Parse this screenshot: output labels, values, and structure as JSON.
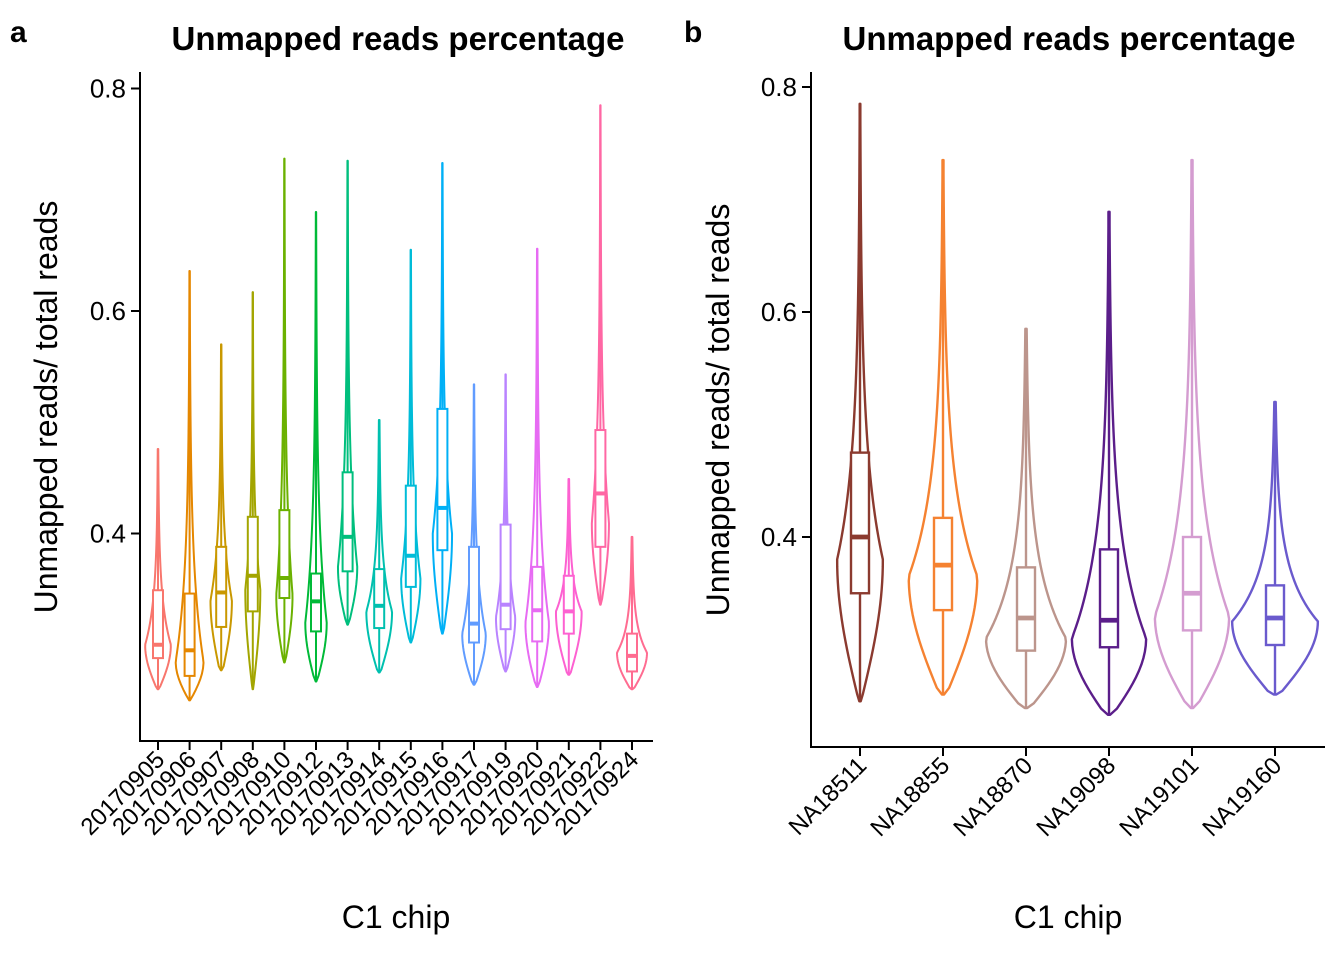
{
  "chart_data": [
    {
      "panel": "a",
      "type": "violin",
      "title": "Unmapped reads percentage",
      "xlabel": "C1 chip",
      "ylabel": "Unmapped reads/ total reads",
      "ylim": [
        0.23,
        0.815
      ],
      "yticks": [
        0.4,
        0.6,
        0.8
      ],
      "ytick_labels": [
        "0.4",
        "0.6",
        "0.8"
      ],
      "grid": false,
      "legend": "none",
      "categories": [
        {
          "name": "20170905",
          "color": "#F8766D",
          "min": 0.26,
          "max": 0.476,
          "q1": 0.288,
          "median": 0.3,
          "q3": 0.349,
          "mode": 0.3,
          "maxw": 0.6,
          "w_low": 0.08,
          "w_high": 0.04
        },
        {
          "name": "20170906",
          "color": "#E58700",
          "min": 0.25,
          "max": 0.636,
          "q1": 0.272,
          "median": 0.295,
          "q3": 0.346,
          "mode": 0.285,
          "maxw": 0.65,
          "w_low": 0.05,
          "w_high": 0.02
        },
        {
          "name": "20170907",
          "color": "#C99800",
          "min": 0.277,
          "max": 0.57,
          "q1": 0.316,
          "median": 0.347,
          "q3": 0.388,
          "mode": 0.34,
          "maxw": 0.5,
          "w_low": 0.15,
          "w_high": 0.03
        },
        {
          "name": "20170908",
          "color": "#A3A500",
          "min": 0.26,
          "max": 0.617,
          "q1": 0.33,
          "median": 0.362,
          "q3": 0.415,
          "mode": 0.35,
          "maxw": 0.35,
          "w_low": 0.05,
          "w_high": 0.03
        },
        {
          "name": "20170910",
          "color": "#6BB100",
          "min": 0.284,
          "max": 0.737,
          "q1": 0.342,
          "median": 0.36,
          "q3": 0.421,
          "mode": 0.345,
          "maxw": 0.38,
          "w_low": 0.1,
          "w_high": 0.03
        },
        {
          "name": "20170912",
          "color": "#00BA38",
          "min": 0.267,
          "max": 0.689,
          "q1": 0.312,
          "median": 0.339,
          "q3": 0.364,
          "mode": 0.32,
          "maxw": 0.5,
          "w_low": 0.1,
          "w_high": 0.03
        },
        {
          "name": "20170913",
          "color": "#00BF7D",
          "min": 0.318,
          "max": 0.735,
          "q1": 0.366,
          "median": 0.397,
          "q3": 0.455,
          "mode": 0.37,
          "maxw": 0.45,
          "w_low": 0.1,
          "w_high": 0.03
        },
        {
          "name": "20170914",
          "color": "#00C0AF",
          "min": 0.275,
          "max": 0.502,
          "q1": 0.315,
          "median": 0.335,
          "q3": 0.368,
          "mode": 0.33,
          "maxw": 0.6,
          "w_low": 0.1,
          "w_high": 0.05
        },
        {
          "name": "20170915",
          "color": "#00BCD8",
          "min": 0.302,
          "max": 0.655,
          "q1": 0.352,
          "median": 0.38,
          "q3": 0.443,
          "mode": 0.36,
          "maxw": 0.45,
          "w_low": 0.1,
          "w_high": 0.03
        },
        {
          "name": "20170916",
          "color": "#00B0F6",
          "min": 0.31,
          "max": 0.733,
          "q1": 0.385,
          "median": 0.423,
          "q3": 0.512,
          "mode": 0.4,
          "maxw": 0.45,
          "w_low": 0.1,
          "w_high": 0.03
        },
        {
          "name": "20170917",
          "color": "#619CFF",
          "min": 0.264,
          "max": 0.534,
          "q1": 0.302,
          "median": 0.319,
          "q3": 0.388,
          "mode": 0.31,
          "maxw": 0.55,
          "w_low": 0.1,
          "w_high": 0.03
        },
        {
          "name": "20170919",
          "color": "#B983FF",
          "min": 0.276,
          "max": 0.543,
          "q1": 0.314,
          "median": 0.336,
          "q3": 0.408,
          "mode": 0.325,
          "maxw": 0.45,
          "w_low": 0.1,
          "w_high": 0.03
        },
        {
          "name": "20170920",
          "color": "#E76BF3",
          "min": 0.262,
          "max": 0.656,
          "q1": 0.303,
          "median": 0.331,
          "q3": 0.37,
          "mode": 0.32,
          "maxw": 0.55,
          "w_low": 0.1,
          "w_high": 0.03
        },
        {
          "name": "20170921",
          "color": "#FD61D1",
          "min": 0.273,
          "max": 0.449,
          "q1": 0.31,
          "median": 0.33,
          "q3": 0.362,
          "mode": 0.33,
          "maxw": 0.6,
          "w_low": 0.1,
          "w_high": 0.05
        },
        {
          "name": "20170922",
          "color": "#FF67A4",
          "min": 0.336,
          "max": 0.785,
          "q1": 0.388,
          "median": 0.436,
          "q3": 0.493,
          "mode": 0.41,
          "maxw": 0.4,
          "w_low": 0.1,
          "w_high": 0.03
        },
        {
          "name": "20170924",
          "color": "#FF6C91",
          "min": 0.26,
          "max": 0.397,
          "q1": 0.276,
          "median": 0.29,
          "q3": 0.31,
          "mode": 0.293,
          "maxw": 0.7,
          "w_low": 0.1,
          "w_high": 0.05
        }
      ]
    },
    {
      "panel": "b",
      "type": "violin",
      "title": "Unmapped reads percentage",
      "xlabel": "C1 chip",
      "ylabel": "Unmapped reads/ total reads",
      "ylim": [
        0.225,
        0.815
      ],
      "yticks": [
        0.4,
        0.6,
        0.8
      ],
      "ytick_labels": [
        "0.4",
        "0.6",
        "0.8"
      ],
      "grid": false,
      "legend": "none",
      "categories": [
        {
          "name": "NA18511",
          "color": "#8B3A2F",
          "min": 0.254,
          "max": 0.785,
          "q1": 0.35,
          "median": 0.4,
          "q3": 0.475,
          "mode": 0.38,
          "maxw": 0.4,
          "w_low": 0.05,
          "w_high": 0.02
        },
        {
          "name": "NA18855",
          "color": "#F58231",
          "min": 0.26,
          "max": 0.735,
          "q1": 0.335,
          "median": 0.375,
          "q3": 0.417,
          "mode": 0.365,
          "maxw": 0.6,
          "w_low": 0.1,
          "w_high": 0.02
        },
        {
          "name": "NA18870",
          "color": "#BC958C",
          "min": 0.248,
          "max": 0.585,
          "q1": 0.299,
          "median": 0.328,
          "q3": 0.373,
          "mode": 0.31,
          "maxw": 0.7,
          "w_low": 0.1,
          "w_high": 0.03
        },
        {
          "name": "NA19098",
          "color": "#5B1E8A",
          "min": 0.242,
          "max": 0.689,
          "q1": 0.302,
          "median": 0.326,
          "q3": 0.389,
          "mode": 0.31,
          "maxw": 0.65,
          "w_low": 0.1,
          "w_high": 0.02
        },
        {
          "name": "NA19101",
          "color": "#D49CD0",
          "min": 0.248,
          "max": 0.735,
          "q1": 0.317,
          "median": 0.35,
          "q3": 0.4,
          "mode": 0.33,
          "maxw": 0.65,
          "w_low": 0.1,
          "w_high": 0.02
        },
        {
          "name": "NA19160",
          "color": "#6A5ACD",
          "min": 0.26,
          "max": 0.52,
          "q1": 0.304,
          "median": 0.328,
          "q3": 0.357,
          "mode": 0.325,
          "maxw": 0.75,
          "w_low": 0.1,
          "w_high": 0.03
        }
      ]
    }
  ]
}
